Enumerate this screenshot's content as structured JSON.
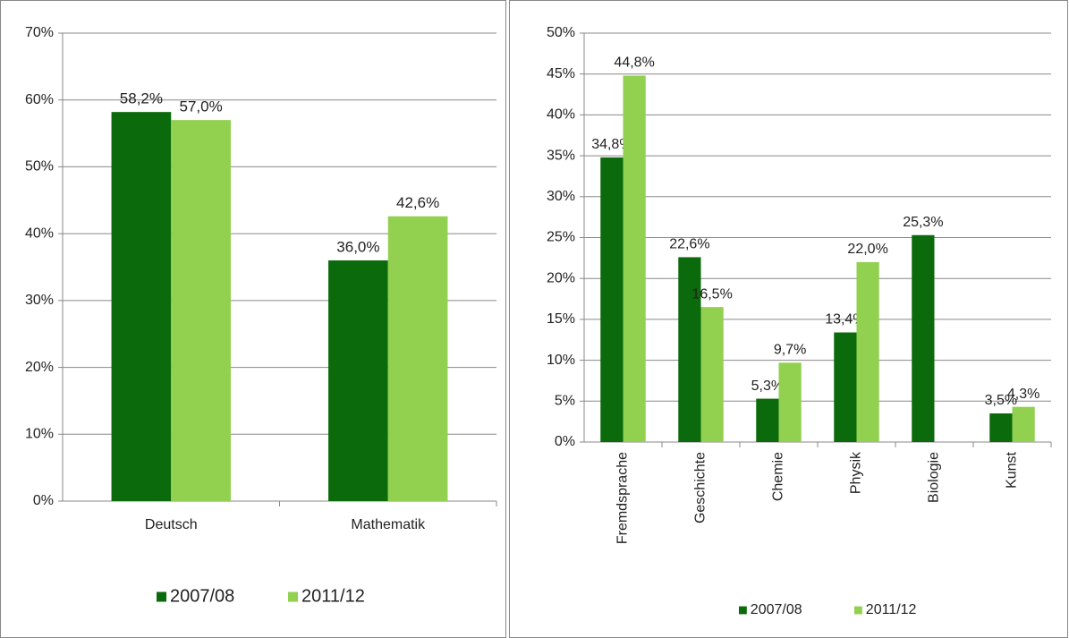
{
  "chart_data": [
    {
      "type": "bar",
      "categories": [
        "Deutsch",
        "Mathematik"
      ],
      "series": [
        {
          "name": "2007/08",
          "color": "#0b6a0b",
          "values": [
            58.2,
            36.0
          ],
          "value_labels": [
            "58,2%",
            "36,0%"
          ]
        },
        {
          "name": "2011/12",
          "color": "#92d050",
          "values": [
            57.0,
            42.6
          ],
          "value_labels": [
            "57,0%",
            "42,6%"
          ]
        }
      ],
      "ylim": [
        0,
        70
      ],
      "yticks": [
        {
          "value": 0,
          "label": "0%"
        },
        {
          "value": 10,
          "label": "10%"
        },
        {
          "value": 20,
          "label": "20%"
        },
        {
          "value": 30,
          "label": "30%"
        },
        {
          "value": 40,
          "label": "40%"
        },
        {
          "value": 50,
          "label": "50%"
        },
        {
          "value": 60,
          "label": "60%"
        },
        {
          "value": 70,
          "label": "70%"
        }
      ],
      "grid": true,
      "legend": "bottom"
    },
    {
      "type": "bar",
      "categories": [
        "Fremdsprache",
        "Geschichte",
        "Chemie",
        "Physik",
        "Biologie",
        "Kunst"
      ],
      "series": [
        {
          "name": "2007/08",
          "color": "#0b6a0b",
          "values": [
            34.8,
            22.6,
            5.3,
            13.4,
            25.3,
            3.5
          ],
          "value_labels": [
            "34,8%",
            "22,6%",
            "5,3%",
            "13,4%",
            "25,3%",
            "3,5%"
          ]
        },
        {
          "name": "2011/12",
          "color": "#92d050",
          "values": [
            44.8,
            16.5,
            9.7,
            22.0,
            null,
            4.3
          ],
          "value_labels": [
            "44,8%",
            "16,5%",
            "9,7%",
            "22,0%",
            null,
            "4,3%"
          ]
        }
      ],
      "ylim": [
        0,
        50
      ],
      "yticks": [
        {
          "value": 0,
          "label": "0%"
        },
        {
          "value": 5,
          "label": "5%"
        },
        {
          "value": 10,
          "label": "10%"
        },
        {
          "value": 15,
          "label": "15%"
        },
        {
          "value": 20,
          "label": "20%"
        },
        {
          "value": 25,
          "label": "25%"
        },
        {
          "value": 30,
          "label": "30%"
        },
        {
          "value": 35,
          "label": "35%"
        },
        {
          "value": 40,
          "label": "40%"
        },
        {
          "value": 45,
          "label": "45%"
        },
        {
          "value": 50,
          "label": "50%"
        }
      ],
      "grid": true,
      "legend": "bottom"
    }
  ]
}
